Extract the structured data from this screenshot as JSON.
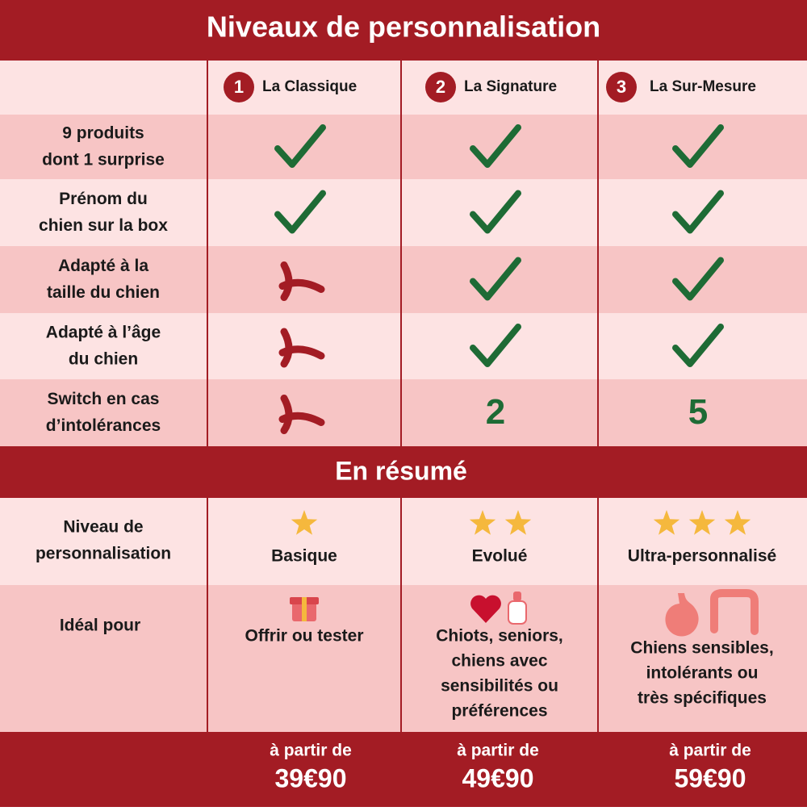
{
  "title": "Niveaux de personnalisation",
  "plans": [
    {
      "number": "1",
      "name": "La Classique"
    },
    {
      "number": "2",
      "name": "La Signature"
    },
    {
      "number": "3",
      "name": "La Sur-Mesure"
    }
  ],
  "features": [
    {
      "label": [
        "9 produits",
        "dont 1 surprise"
      ]
    },
    {
      "label": [
        "Prénom du",
        "chien sur la box"
      ]
    },
    {
      "label": [
        "Adapté à la",
        "taille du chien"
      ]
    },
    {
      "label": [
        "Adapté à l’âge",
        "du chien"
      ]
    },
    {
      "label": [
        "Switch en cas",
        "d’intolérances"
      ],
      "values": [
        "2",
        "5"
      ]
    }
  ],
  "summary_title": "En résumé",
  "summary_rows": [
    {
      "label": [
        "Niveau de",
        "personnalisation"
      ],
      "cells": [
        [
          "Basique"
        ],
        [
          "Evolué"
        ],
        [
          "Ultra-personnalisé"
        ]
      ]
    },
    {
      "label": [
        "Idéal pour"
      ],
      "cells": [
        [
          "Offrir ou tester"
        ],
        [
          "Chiots, seniors,",
          "chiens avec",
          "sensibilités ou",
          "préférences"
        ],
        [
          "Chiens sensibles,",
          "intolérants ou",
          "très spécifiques"
        ]
      ]
    }
  ],
  "prices": [
    {
      "prefix": "à partir de",
      "amount": "39€90"
    },
    {
      "prefix": "à partir de",
      "amount": "49€90"
    },
    {
      "prefix": "à partir de",
      "amount": "59€90"
    }
  ]
}
